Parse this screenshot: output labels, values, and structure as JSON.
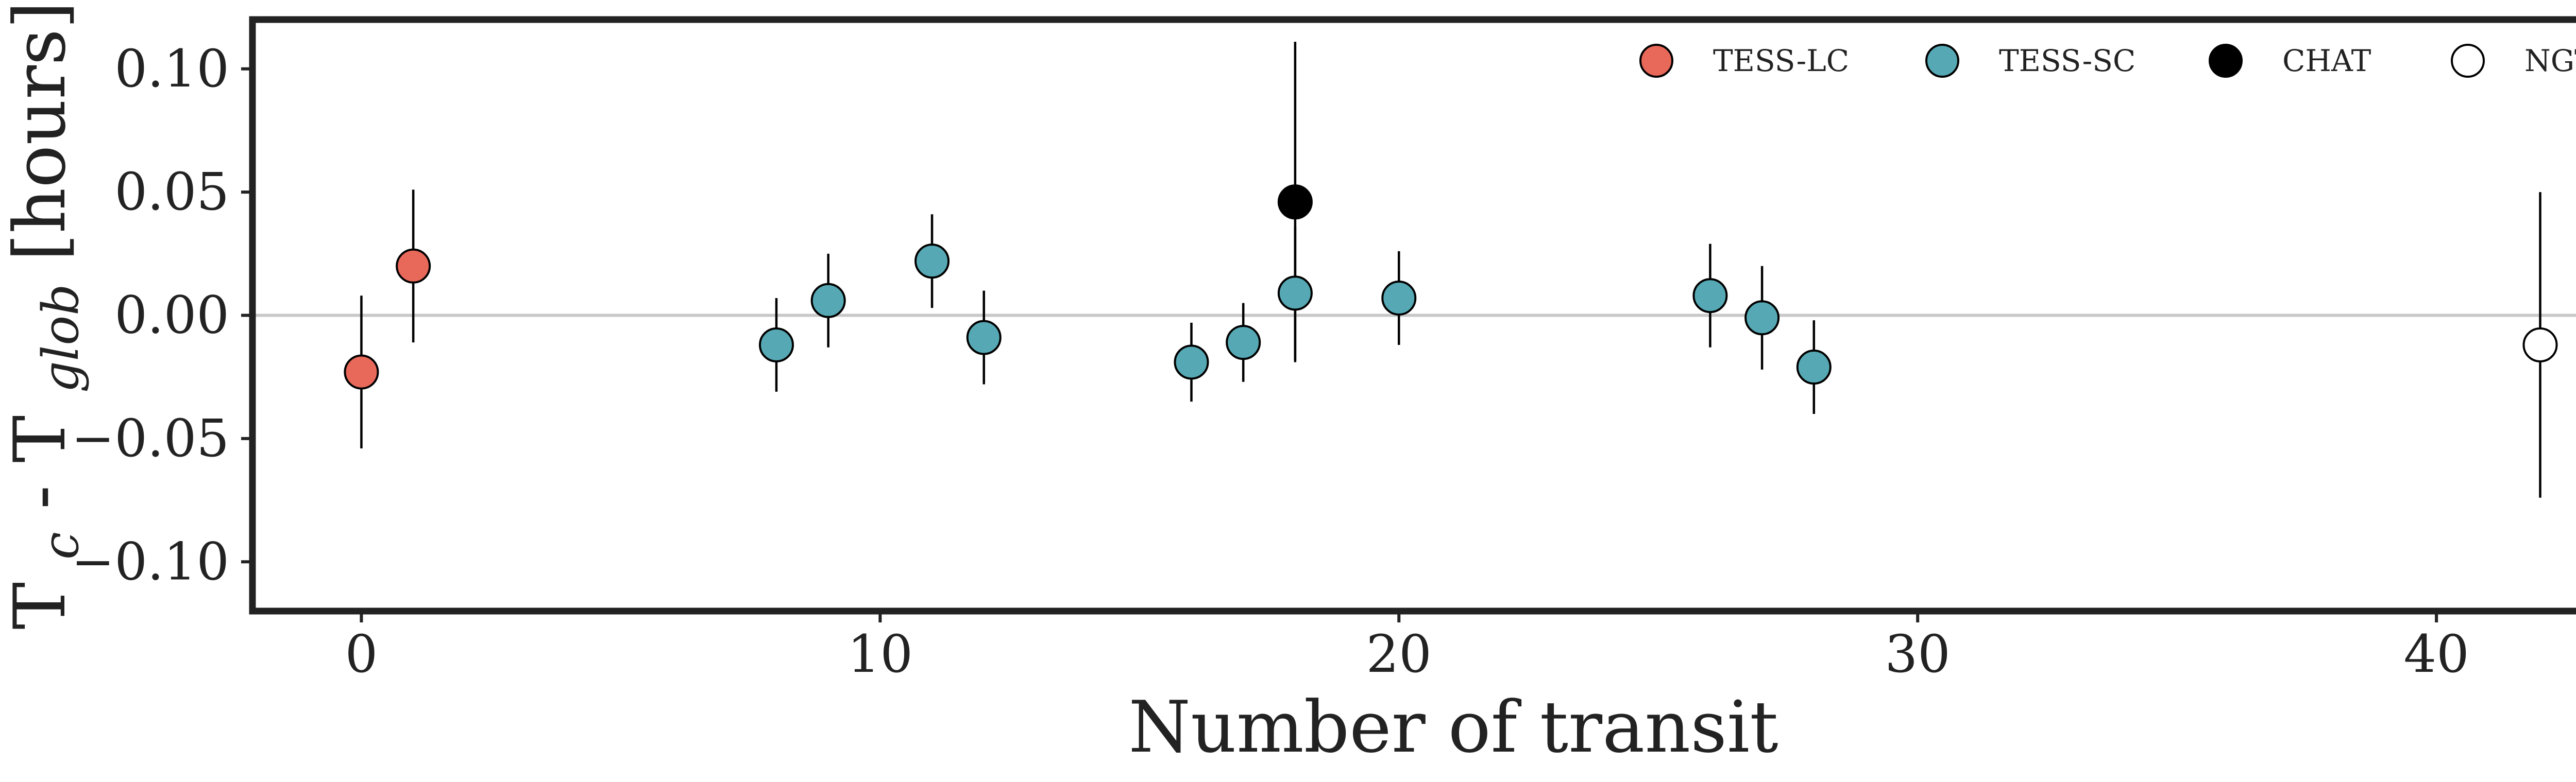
{
  "chart_data": {
    "type": "scatter",
    "title": "",
    "xlabel": "Number of transit",
    "ylabel": {
      "base": "T",
      "sub1": "c",
      "mid": " - T",
      "sub2": "glob",
      "tail": " [hours]"
    },
    "xlim": [
      -2.1,
      44.2
    ],
    "ylim": [
      -0.12,
      0.12
    ],
    "x_ticks": [
      0,
      10,
      20,
      30,
      40
    ],
    "x_tick_labels": [
      "0",
      "10",
      "20",
      "30",
      "40"
    ],
    "y_ticks": [
      0.1,
      0.05,
      0.0,
      -0.05,
      -0.1
    ],
    "y_tick_labels": [
      "0.10",
      "0.05",
      "0.00",
      "−0.05",
      "−0.10"
    ],
    "zero_line": true,
    "grid": false,
    "legend_position": "top-right",
    "series": [
      {
        "name": "TESS-LC",
        "color": "#e8685a",
        "points": [
          {
            "x": 0,
            "y": -0.023,
            "err": 0.031
          },
          {
            "x": 1,
            "y": 0.02,
            "err": 0.031
          }
        ]
      },
      {
        "name": "TESS-SC",
        "color": "#56a9b4",
        "points": [
          {
            "x": 8,
            "y": -0.012,
            "err": 0.019
          },
          {
            "x": 9,
            "y": 0.006,
            "err": 0.019
          },
          {
            "x": 11,
            "y": 0.022,
            "err": 0.019
          },
          {
            "x": 12,
            "y": -0.009,
            "err": 0.019
          },
          {
            "x": 16,
            "y": -0.019,
            "err": 0.016
          },
          {
            "x": 17,
            "y": -0.011,
            "err": 0.016
          },
          {
            "x": 18,
            "y": 0.009,
            "err": 0.027
          },
          {
            "x": 20,
            "y": 0.007,
            "err": 0.019
          },
          {
            "x": 26,
            "y": 0.008,
            "err": 0.021
          },
          {
            "x": 27,
            "y": -0.001,
            "err": 0.021
          },
          {
            "x": 28,
            "y": -0.021,
            "err": 0.019
          }
        ]
      },
      {
        "name": "CHAT",
        "color": "#000000",
        "points": [
          {
            "x": 18,
            "y": 0.046,
            "err": 0.065
          }
        ]
      },
      {
        "name": "NGTS",
        "color": "#ffffff",
        "points": [
          {
            "x": 42,
            "y": -0.012,
            "err": 0.062
          }
        ]
      }
    ]
  }
}
